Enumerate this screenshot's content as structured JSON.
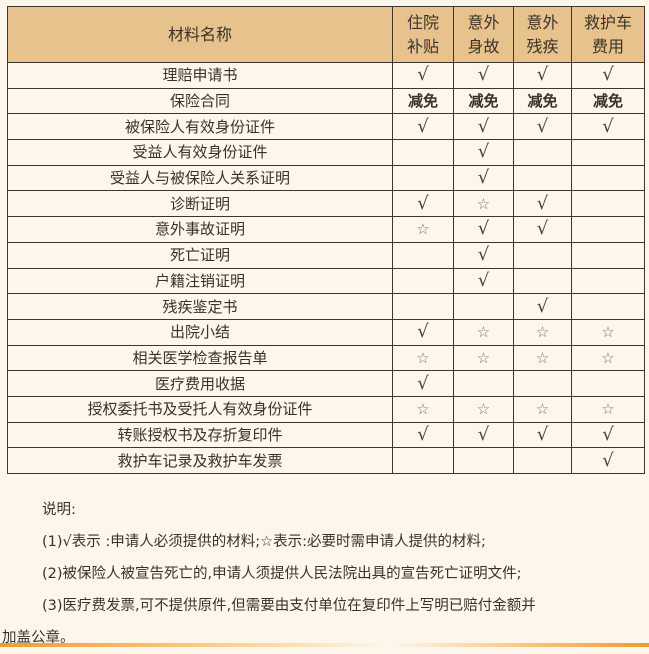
{
  "table": {
    "headers": [
      "材料名称",
      "住院\n补贴",
      "意外\n身故",
      "意外\n残疾",
      "救护车\n费用"
    ],
    "rows": [
      {
        "name": "理赔申请书",
        "cells": [
          "√",
          "√",
          "√",
          "√"
        ]
      },
      {
        "name": "保险合同",
        "cells": [
          "减免",
          "减免",
          "减免",
          "减免"
        ]
      },
      {
        "name": "被保险人有效身份证件",
        "cells": [
          "√",
          "√",
          "√",
          "√"
        ]
      },
      {
        "name": "受益人有效身份证件",
        "cells": [
          "",
          "√",
          "",
          ""
        ]
      },
      {
        "name": "受益人与被保险人关系证明",
        "cells": [
          "",
          "√",
          "",
          ""
        ]
      },
      {
        "name": "诊断证明",
        "cells": [
          "√",
          "☆",
          "√",
          ""
        ]
      },
      {
        "name": "意外事故证明",
        "cells": [
          "☆",
          "√",
          "√",
          ""
        ]
      },
      {
        "name": "死亡证明",
        "cells": [
          "",
          "√",
          "",
          ""
        ]
      },
      {
        "name": "户籍注销证明",
        "cells": [
          "",
          "√",
          "",
          ""
        ]
      },
      {
        "name": "残疾鉴定书",
        "cells": [
          "",
          "",
          "√",
          ""
        ]
      },
      {
        "name": "出院小结",
        "cells": [
          "√",
          "☆",
          "☆",
          "☆"
        ]
      },
      {
        "name": "相关医学检查报告单",
        "cells": [
          "☆",
          "☆",
          "☆",
          "☆"
        ]
      },
      {
        "name": "医疗费用收据",
        "cells": [
          "√",
          "",
          "",
          ""
        ]
      },
      {
        "name": "授权委托书及受托人有效身份证件",
        "cells": [
          "☆",
          "☆",
          "☆",
          "☆"
        ]
      },
      {
        "name": "转账授权书及存折复印件",
        "cells": [
          "√",
          "√",
          "√",
          "√"
        ]
      },
      {
        "name": "救护车记录及救护车发票",
        "cells": [
          "",
          "",
          "",
          "√"
        ]
      }
    ]
  },
  "notes": {
    "title": "说明:",
    "items": [
      "(1)√表示 :申请人必须提供的材料;☆表示:必要时需申请人提供的材料;",
      "(2)被保险人被宣告死亡的,申请人须提供人民法院出具的宣告死亡证明文件;",
      "(3)医疗费发票,可不提供原件,但需要由支付单位在复印件上写明已赔付金额并"
    ],
    "continuation": "加盖公章。"
  },
  "colors": {
    "header_bg": "#e8c28c",
    "page_bg": "#fdf6ea",
    "accent_bar": "#f29a2e"
  }
}
